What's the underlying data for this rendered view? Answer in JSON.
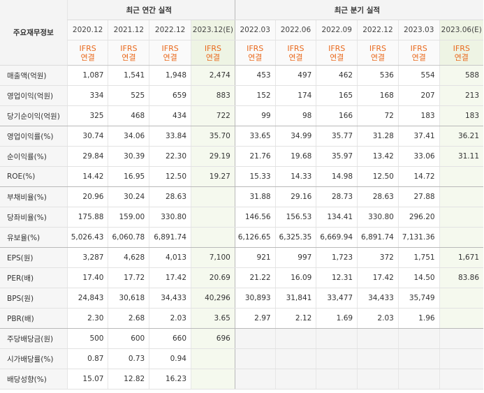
{
  "header": {
    "row_label": "주요재무정보",
    "annual_group": "최근 연간 실적",
    "quarterly_group": "최근 분기 실적",
    "annual_periods": [
      "2020.12",
      "2021.12",
      "2022.12",
      "2023.12(E)"
    ],
    "quarterly_periods": [
      "2022.03",
      "2022.06",
      "2022.09",
      "2022.12",
      "2023.03",
      "2023.06(E)"
    ],
    "basis_line1": "IFRS",
    "basis_line2": "연결"
  },
  "rows": [
    {
      "label": "매출액(억원)",
      "values": [
        "1,087",
        "1,541",
        "1,948",
        "2,474",
        "453",
        "497",
        "462",
        "536",
        "554",
        "588"
      ]
    },
    {
      "label": "영업이익(억원)",
      "values": [
        "334",
        "525",
        "659",
        "883",
        "152",
        "174",
        "165",
        "168",
        "207",
        "213"
      ]
    },
    {
      "label": "당기순이익(억원)",
      "values": [
        "325",
        "468",
        "434",
        "722",
        "99",
        "98",
        "166",
        "72",
        "183",
        "183"
      ]
    },
    {
      "label": "영업이익률(%)",
      "values": [
        "30.74",
        "34.06",
        "33.84",
        "35.70",
        "33.65",
        "34.99",
        "35.77",
        "31.28",
        "37.41",
        "36.21"
      ]
    },
    {
      "label": "순이익률(%)",
      "values": [
        "29.84",
        "30.39",
        "22.30",
        "29.19",
        "21.76",
        "19.68",
        "35.97",
        "13.42",
        "33.06",
        "31.11"
      ]
    },
    {
      "label": "ROE(%)",
      "values": [
        "14.42",
        "16.95",
        "12.50",
        "19.27",
        "15.33",
        "14.33",
        "14.98",
        "12.50",
        "14.72",
        ""
      ]
    },
    {
      "label": "부채비율(%)",
      "values": [
        "20.96",
        "30.24",
        "28.63",
        "",
        "31.88",
        "29.16",
        "28.73",
        "28.63",
        "27.88",
        ""
      ]
    },
    {
      "label": "당좌비율(%)",
      "values": [
        "175.88",
        "159.00",
        "330.80",
        "",
        "146.56",
        "156.53",
        "134.41",
        "330.80",
        "296.20",
        ""
      ]
    },
    {
      "label": "유보율(%)",
      "values": [
        "5,026.43",
        "6,060.78",
        "6,891.74",
        "",
        "6,126.65",
        "6,325.35",
        "6,669.94",
        "6,891.74",
        "7,131.36",
        ""
      ]
    },
    {
      "label": "EPS(원)",
      "values": [
        "3,287",
        "4,628",
        "4,013",
        "7,100",
        "921",
        "997",
        "1,723",
        "372",
        "1,751",
        "1,671"
      ]
    },
    {
      "label": "PER(배)",
      "values": [
        "17.40",
        "17.72",
        "17.42",
        "20.69",
        "21.22",
        "16.09",
        "12.31",
        "17.42",
        "14.50",
        "83.86"
      ]
    },
    {
      "label": "BPS(원)",
      "values": [
        "24,843",
        "30,618",
        "34,433",
        "40,296",
        "30,893",
        "31,841",
        "33,477",
        "34,433",
        "35,749",
        ""
      ]
    },
    {
      "label": "PBR(배)",
      "values": [
        "2.30",
        "2.68",
        "2.03",
        "3.65",
        "2.97",
        "2.12",
        "1.69",
        "2.03",
        "1.96",
        ""
      ]
    },
    {
      "label": "주당배당금(원)",
      "values": [
        "500",
        "600",
        "660",
        "696",
        "",
        "",
        "",
        "",
        "",
        ""
      ]
    },
    {
      "label": "시가배당률(%)",
      "values": [
        "0.87",
        "0.73",
        "0.94",
        "",
        "",
        "",
        "",
        "",
        "",
        ""
      ]
    },
    {
      "label": "배당성향(%)",
      "values": [
        "15.07",
        "12.82",
        "16.23",
        "",
        "",
        "",
        "",
        "",
        "",
        ""
      ]
    }
  ]
}
